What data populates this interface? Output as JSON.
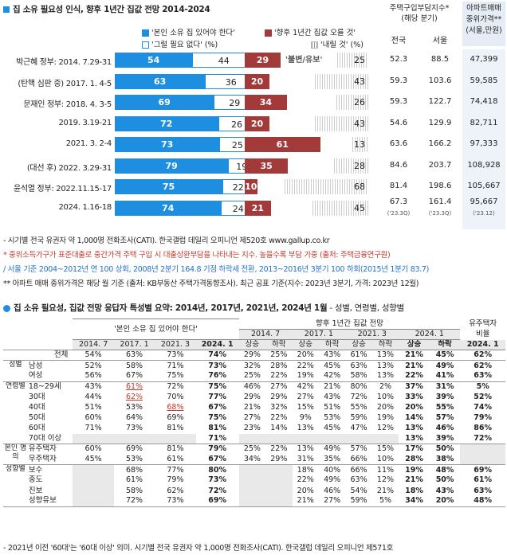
{
  "title": "집 소유 필요성 인식, 향후 1년간 집값 전망 2014-2024",
  "legend": {
    "need": "'본인 소유 집 있어야 한다'",
    "noneed": "'그럴 필요 없다' (%)",
    "up": "'향후 1년간 집값 오를 것'",
    "down": "'내릴 것' (%)"
  },
  "index_header": {
    "line1": "주택구입부담지수*",
    "line2": "(해당 분기)",
    "national": "전국",
    "seoul": "서울"
  },
  "price_header": {
    "line1": "아파트매매",
    "line2": "중위가격**",
    "line3": "(서울,만원)"
  },
  "flat_label": "'불변/유보'",
  "chart_data": {
    "type": "bar",
    "categories": [
      "박근혜 정부: 2014. 7.29-31",
      "(탄핵 심판 중) 2017. 1. 4-5",
      "문재인 정부: 2018. 4. 3-5",
      "2019. 3.19-21",
      "2021. 3. 2-4",
      "(대선 후) 2022. 3.29-31",
      "윤석열 정부: 2022.11.15-17",
      "2024. 1.16-18"
    ],
    "series": [
      {
        "name": "'본인 소유 집 있어야 한다'",
        "values": [
          54,
          63,
          69,
          72,
          73,
          79,
          75,
          74
        ]
      },
      {
        "name": "'그럴 필요 없다'",
        "values": [
          44,
          36,
          29,
          26,
          25,
          19,
          22,
          24
        ]
      },
      {
        "name": "'향후 1년간 집값 오를 것'",
        "values": [
          29,
          20,
          34,
          20,
          61,
          35,
          10,
          21
        ]
      },
      {
        "name": "'내릴 것'",
        "values": [
          25,
          43,
          26,
          43,
          13,
          28,
          68,
          45
        ]
      }
    ],
    "index_national": [
      "52.3",
      "59.3",
      "59.3",
      "54.6",
      "63.6",
      "84.6",
      "81.4",
      "67.3"
    ],
    "index_seoul": [
      "88.5",
      "103.6",
      "122.7",
      "129.9",
      "166.2",
      "203.7",
      "198.6",
      "161.4"
    ],
    "median_price": [
      "47,399",
      "59,585",
      "74,418",
      "82,711",
      "97,333",
      "108,928",
      "105,667",
      "95,667"
    ],
    "last_row_notes": {
      "national": "('23.3Q)",
      "seoul": "('23.3Q)",
      "price": "('23.12)"
    }
  },
  "notes1": [
    "- 시기별 전국 유권자 약 1,000명 전화조사(CATI). 한국갤럽 데일리 오피니언 제520호 www.gallup.co.kr",
    "* 중위소득가구가 표준대출로 중간가격 주택 구입 시 대출상환부담을 나타내는 지수. 높을수록 부담 가중 (출처: 주택금융연구원)",
    "  / 서울 기준 2004~2012년 연 100 상회, 2008년 2분기 164.8 기점 하락세 전환, 2013~2016년 3분기 100 하회(2015년 1분기 83.7)",
    "** 아파트 매매 중위가격은 해당 월 기준 (출처: KB부동산 주택가격동향조사). 최근 공표 기준(지수: 2023년 3분기, 가격: 2023년 12월)"
  ],
  "table2": {
    "title": "집 소유 필요성, 집값 전망 응답자 특성별 요약: 2014년, 2017년, 2021년, 2024년 1월",
    "title_sub": " - 성별, 연령별, 성향별",
    "h_need": "'본인 소유 집 있어야 한다'",
    "h_outlook": "향후 1년간 집값 전망",
    "h_owner1": "유주택자",
    "h_owner2": "비율",
    "years": [
      "2014. 7",
      "2017. 1",
      "2021. 3",
      "2024. 1"
    ],
    "updown": [
      "상승",
      "하락"
    ],
    "owner_year": "2024. 1",
    "groups": [
      {
        "group": "",
        "rows": [
          {
            "label": "전체",
            "need": [
              "54%",
              "63%",
              "73%",
              "74%"
            ],
            "out": [
              "29%",
              "25%",
              "20%",
              "43%",
              "61%",
              "13%",
              "21%",
              "45%"
            ],
            "own": "62%"
          }
        ]
      },
      {
        "group": "성별",
        "rows": [
          {
            "label": "남성",
            "need": [
              "52%",
              "58%",
              "71%",
              "73%"
            ],
            "out": [
              "32%",
              "28%",
              "22%",
              "45%",
              "63%",
              "13%",
              "21%",
              "49%"
            ],
            "own": "62%"
          },
          {
            "label": "여성",
            "need": [
              "56%",
              "67%",
              "75%",
              "76%"
            ],
            "out": [
              "25%",
              "22%",
              "19%",
              "42%",
              "58%",
              "13%",
              "22%",
              "41%"
            ],
            "own": "63%"
          }
        ]
      },
      {
        "group": "연령별",
        "rows": [
          {
            "label": "18~29세",
            "need": [
              "43%",
              "61%",
              "72%",
              "75%"
            ],
            "out": [
              "46%",
              "27%",
              "42%",
              "21%",
              "80%",
              "2%",
              "37%",
              "31%"
            ],
            "own": "5%"
          },
          {
            "label": "30대",
            "need": [
              "44%",
              "62%",
              "70%",
              "77%"
            ],
            "out": [
              "29%",
              "29%",
              "27%",
              "43%",
              "72%",
              "10%",
              "33%",
              "39%"
            ],
            "own": "52%"
          },
          {
            "label": "40대",
            "need": [
              "51%",
              "53%",
              "68%",
              "67%"
            ],
            "out": [
              "21%",
              "32%",
              "15%",
              "51%",
              "55%",
              "20%",
              "20%",
              "55%"
            ],
            "own": "74%"
          },
          {
            "label": "50대",
            "need": [
              "60%",
              "64%",
              "69%",
              "75%"
            ],
            "out": [
              "27%",
              "22%",
              "9%",
              "53%",
              "59%",
              "19%",
              "14%",
              "57%"
            ],
            "own": "79%"
          },
          {
            "label": "60대",
            "need": [
              "71%",
              "73%",
              "81%",
              "81%"
            ],
            "out": [
              "23%",
              "14%",
              "13%",
              "45%",
              "47%",
              "12%",
              "13%",
              "46%"
            ],
            "own": "86%"
          },
          {
            "label": "70대 이상",
            "need": [
              "",
              "",
              "",
              "71%"
            ],
            "out": [
              "",
              "",
              "",
              "",
              "",
              "",
              "13%",
              "39%"
            ],
            "own": "72%"
          }
        ]
      },
      {
        "group": "본인 명의",
        "rows": [
          {
            "label": "유주택자",
            "need": [
              "60%",
              "69%",
              "81%",
              "79%"
            ],
            "out": [
              "25%",
              "22%",
              "13%",
              "49%",
              "57%",
              "15%",
              "17%",
              "50%"
            ],
            "own": ""
          },
          {
            "label": "무주택자",
            "need": [
              "45%",
              "53%",
              "61%",
              "67%"
            ],
            "out": [
              "34%",
              "29%",
              "31%",
              "35%",
              "66%",
              "10%",
              "28%",
              "38%"
            ],
            "own": ""
          }
        ]
      },
      {
        "group": "성향별",
        "rows": [
          {
            "label": "보수",
            "need": [
              "",
              "68%",
              "77%",
              "80%"
            ],
            "out": [
              "",
              "",
              "18%",
              "40%",
              "66%",
              "11%",
              "19%",
              "48%"
            ],
            "own": "69%"
          },
          {
            "label": "중도",
            "need": [
              "",
              "61%",
              "79%",
              "73%"
            ],
            "out": [
              "",
              "",
              "22%",
              "49%",
              "63%",
              "12%",
              "21%",
              "50%"
            ],
            "own": "61%"
          },
          {
            "label": "진보",
            "need": [
              "",
              "58%",
              "62%",
              "72%"
            ],
            "out": [
              "",
              "",
              "20%",
              "46%",
              "54%",
              "21%",
              "18%",
              "43%"
            ],
            "own": "63%"
          },
          {
            "label": "성향유보",
            "need": [
              "",
              "72%",
              "73%",
              "69%"
            ],
            "out": [
              "",
              "",
              "21%",
              "27%",
              "59%",
              "5%",
              "34%",
              "20%"
            ],
            "own": "48%"
          }
        ]
      }
    ]
  },
  "note2": "- 2021년 이전 '60대'는 '60대 이상' 의미. 시기별 전국 유권자 약 1,000명 전화조사(CATI). 한국갤럽 데일리 오피니언 제571호"
}
